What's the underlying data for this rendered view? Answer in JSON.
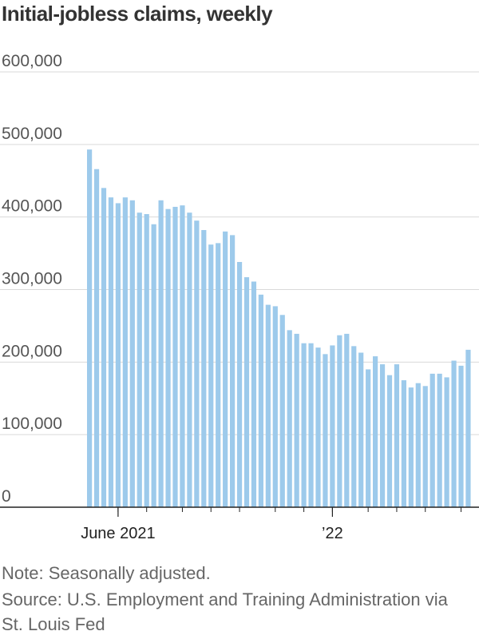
{
  "title": "Initial-jobless claims, weekly",
  "note": "Note: Seasonally adjusted.",
  "source": "Source: U.S. Employment and Training Administration via St. Louis Fed",
  "colors": {
    "bar": "#9dcaeb",
    "grid": "#d9d9d9",
    "axis": "#222222"
  },
  "chart_data": {
    "type": "bar",
    "title": "Initial-jobless claims, weekly",
    "xlabel": "",
    "ylabel": "",
    "ylim": [
      0,
      600000
    ],
    "yticks": [
      0,
      100000,
      200000,
      300000,
      400000,
      500000,
      600000
    ],
    "ytick_labels": [
      "0",
      "100,000",
      "200,000",
      "300,000",
      "400,000",
      "500,000",
      "600,000"
    ],
    "xtick_labels": [
      {
        "label": "June 2021",
        "at_bar": 4
      },
      {
        "label": "’22",
        "at_bar": 34
      }
    ],
    "month_ticks_at_bar": [
      4,
      8,
      13,
      17,
      21,
      26,
      30,
      34,
      39,
      43,
      47,
      52
    ],
    "grid": true,
    "values": [
      493000,
      466000,
      440000,
      427000,
      419000,
      427000,
      423000,
      406000,
      404000,
      390000,
      423000,
      411000,
      414000,
      416000,
      406000,
      395000,
      382000,
      362000,
      364000,
      380000,
      375000,
      338000,
      317000,
      311000,
      293000,
      279000,
      277000,
      265000,
      244000,
      239000,
      226000,
      226000,
      220000,
      211000,
      223000,
      237000,
      239000,
      222000,
      213000,
      190000,
      208000,
      197000,
      182000,
      197000,
      175000,
      165000,
      171000,
      167000,
      184000,
      184000,
      179000,
      202000,
      195000,
      217000
    ]
  }
}
